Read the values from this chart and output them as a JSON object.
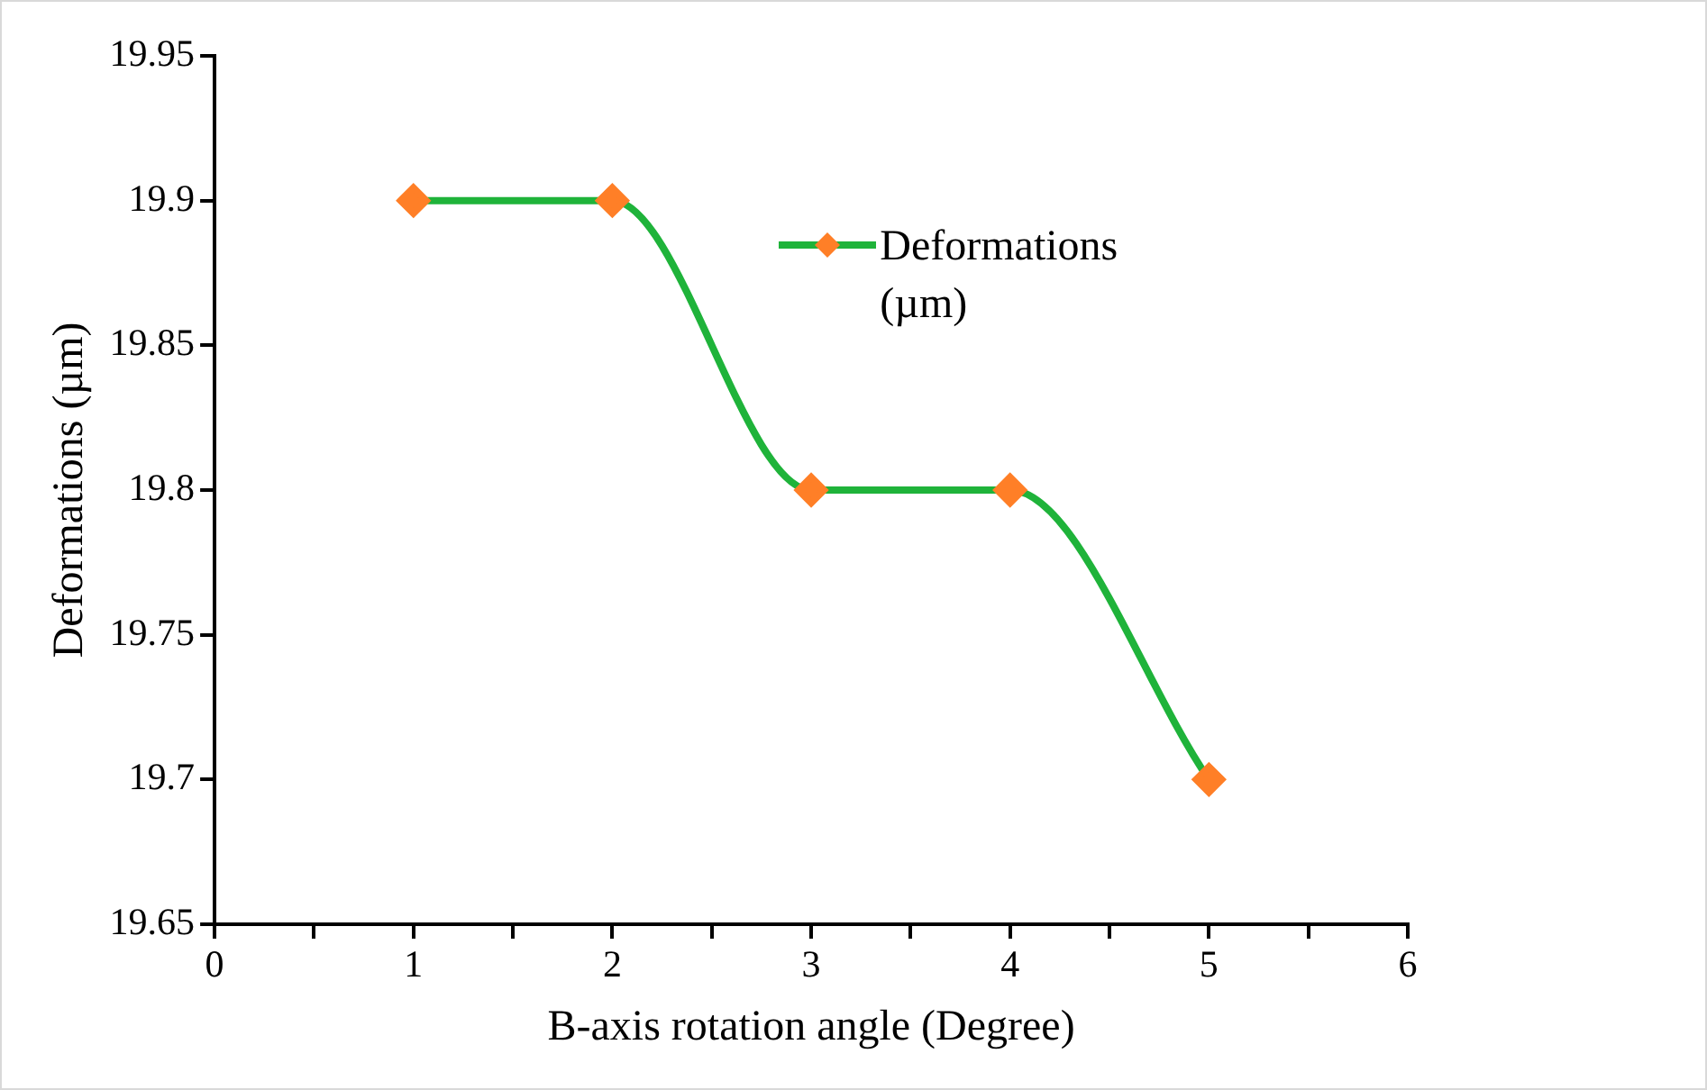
{
  "chart_data": {
    "type": "line",
    "xlabel": "B-axis rotation angle (Degree)",
    "ylabel": "Deformations (µm)",
    "x": [
      1,
      2,
      3,
      4,
      5
    ],
    "series": [
      {
        "name": "Deformations (µm)",
        "color": "#1fb33a",
        "colors": [
          "#ff7f27",
          "#ff7f27",
          "#ff7f27",
          "#ff7f27",
          "#ff7f27"
        ],
        "values": [
          19.9,
          19.9,
          19.8,
          19.8,
          19.7
        ]
      }
    ],
    "xlim": [
      0,
      6
    ],
    "xticks": [
      0,
      {
        "value": 0.5,
        "label": null
      },
      1,
      {
        "value": 1.5,
        "label": null
      },
      2,
      {
        "value": 2.5,
        "label": null
      },
      3,
      {
        "value": 3.5,
        "label": null
      },
      4,
      {
        "value": 4.5,
        "label": null
      },
      5,
      {
        "value": 5.5,
        "label": null
      },
      6
    ],
    "ylim": [
      19.65,
      19.95
    ],
    "yticks": [
      19.65,
      19.7,
      19.75,
      19.8,
      19.85,
      19.9,
      19.95
    ],
    "grid": false,
    "legend": "top right",
    "marker": "diamond",
    "line_style": "solid"
  }
}
